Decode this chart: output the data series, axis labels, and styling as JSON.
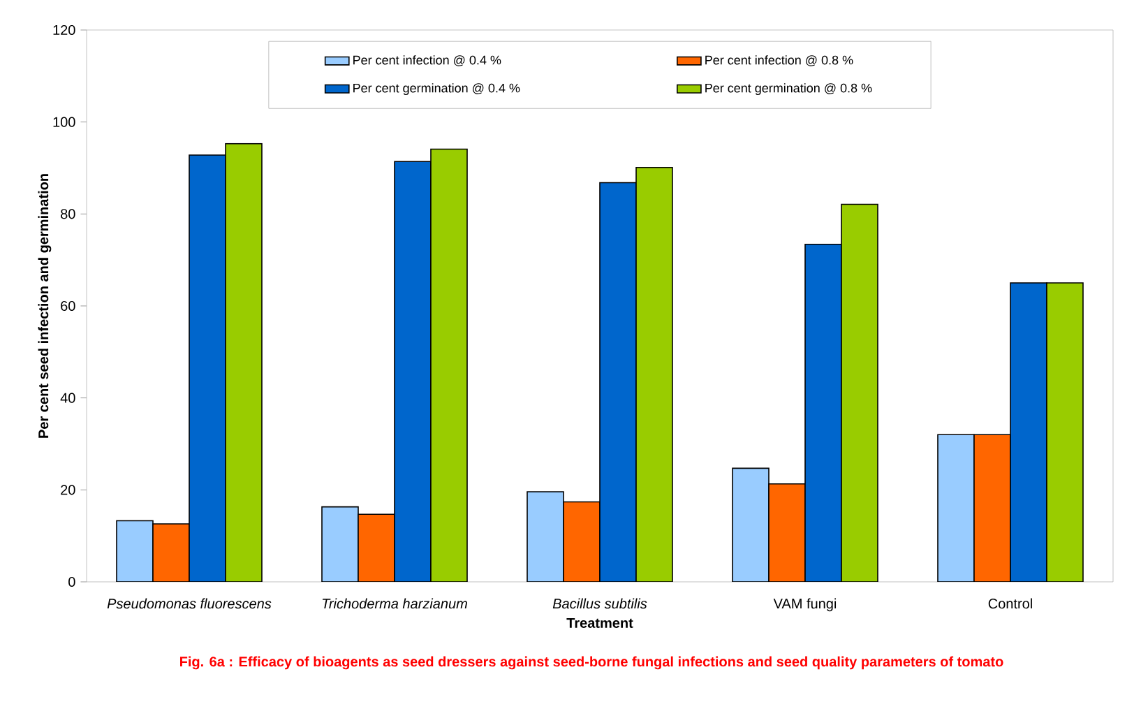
{
  "chart_data": {
    "type": "bar",
    "title": "Fig. 6a : Efficacy of bioagents as seed dressers against seed-borne fungal infections and seed quality parameters of tomato",
    "xlabel": "Treatment",
    "ylabel": "Per cent seed infection and germination",
    "categories": [
      "*Pseudomonas fluorescens*",
      "*Trichoderma harzianum*",
      "*Bacillus subtilis*",
      "VAM fungi",
      "Control"
    ],
    "series": [
      {
        "name": "Per cent infection @ 0.4 %",
        "color": "#99ccff",
        "values": [
          13.3,
          16.3,
          19.6,
          24.7,
          32
        ]
      },
      {
        "name": "Per cent infection @ 0.8 %",
        "color": "#ff6600",
        "values": [
          12.6,
          14.7,
          17.4,
          21.3,
          32
        ]
      },
      {
        "name": "Per cent germination @ 0.4 %",
        "color": "#0066cc",
        "values": [
          92.8,
          91.4,
          86.8,
          73.4,
          65
        ]
      },
      {
        "name": "Per cent germination @ 0.8 %",
        "color": "#99cc00",
        "values": [
          95.3,
          94.1,
          90.1,
          82.1,
          65
        ]
      }
    ],
    "ylim": [
      0,
      120
    ],
    "yticks": [
      0,
      20,
      40,
      60,
      80,
      100,
      120
    ],
    "legend": "top",
    "grid": false
  }
}
